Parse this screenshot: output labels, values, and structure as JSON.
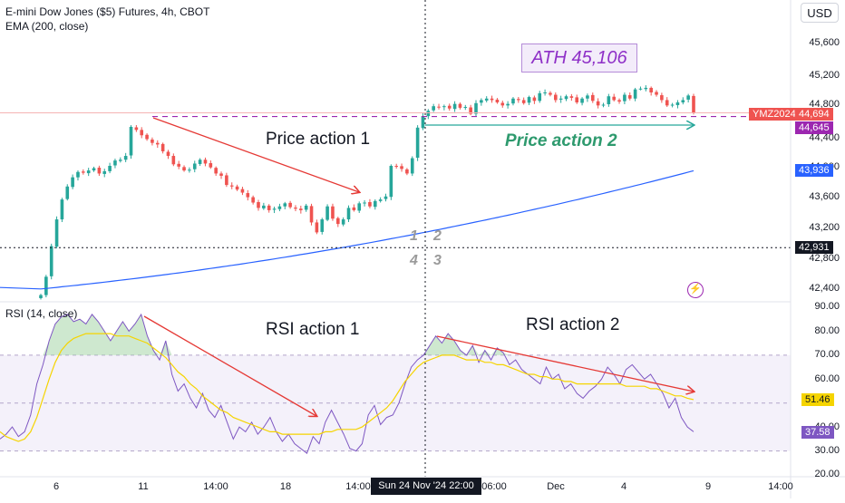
{
  "header": {
    "symbol": "E-mini Dow Jones ($5) Futures, 4h, CBOT",
    "indicator": "EMA (200, close)"
  },
  "currency": "USD",
  "rsi_header": "RSI (14, close)",
  "annotations": {
    "ath": "ATH 45,106",
    "price_action_1": "Price action 1",
    "price_action_2": "Price action 2",
    "rsi_action_1": "RSI action 1",
    "rsi_action_2": "RSI action 2",
    "n1": "1",
    "n2": "2",
    "n3": "3",
    "n4": "4"
  },
  "price_axis": [
    "45,600",
    "45,200",
    "44,800",
    "44,400",
    "44,000",
    "43,600",
    "43,200",
    "42,800",
    "42,400"
  ],
  "price_tags": {
    "symbol_tag": "YMZ2024",
    "last": "44,694",
    "level": "44,645",
    "ema": "43,936",
    "crosshair": "42,931"
  },
  "rsi_axis": [
    "90.00",
    "80.00",
    "70.00",
    "60.00",
    "40.00",
    "30.00",
    "20.00"
  ],
  "rsi_tags": {
    "ma": "51.46",
    "rsi": "37.58"
  },
  "x_axis": [
    "6",
    "11",
    "14:00",
    "18",
    "14:00",
    "06:00",
    "Dec",
    "4",
    "9",
    "14:00"
  ],
  "crosshair_date": "Sun 24 Nov '24   22:00",
  "colors": {
    "up": "#26a69a",
    "down": "#ef5350",
    "ema": "#2962ff",
    "rsi": "#7e57c2",
    "rsi_ma": "#f5d400",
    "arrow_red": "#e53935",
    "arrow_green": "#26a69a",
    "level": "#9c27b0"
  },
  "chart_data": [
    {
      "type": "candlestick",
      "title": "E-mini Dow Jones ($5) Futures, 4h, CBOT",
      "ylim": [
        42200,
        45800
      ],
      "y_ticks": [
        42400,
        42800,
        43200,
        43600,
        44000,
        44400,
        44800,
        45200,
        45600
      ],
      "close": [
        42310,
        42550,
        42950,
        43300,
        43560,
        43730,
        43850,
        43920,
        43910,
        43940,
        43970,
        43900,
        43930,
        44000,
        44070,
        44080,
        44130,
        44510,
        44470,
        44400,
        44350,
        44300,
        44280,
        44190,
        44130,
        44020,
        43990,
        43940,
        43950,
        44030,
        44080,
        44030,
        43980,
        43900,
        43870,
        43750,
        43730,
        43690,
        43650,
        43590,
        43520,
        43450,
        43480,
        43420,
        43440,
        43470,
        43510,
        43460,
        43440,
        43420,
        43480,
        43260,
        43130,
        43300,
        43470,
        43310,
        43240,
        43300,
        43450,
        43420,
        43510,
        43520,
        43470,
        43540,
        43560,
        43600,
        44000,
        43990,
        43960,
        43900,
        44100,
        44500,
        44650,
        44720,
        44780,
        44770,
        44780,
        44750,
        44810,
        44760,
        44770,
        44680,
        44820,
        44860,
        44880,
        44860,
        44830,
        44790,
        44810,
        44880,
        44860,
        44820,
        44900,
        44850,
        44950,
        44960,
        44930,
        44860,
        44880,
        44910,
        44890,
        44830,
        44880,
        44920,
        44850,
        44790,
        44800,
        44910,
        44860,
        44840,
        44930,
        44880,
        45000,
        45010,
        45020,
        44960,
        44930,
        44860,
        44790,
        44800,
        44830,
        44860,
        44920,
        44694
      ],
      "ema200": {
        "start": 42390,
        "end": 43936
      },
      "levels": {
        "last": 44694,
        "ath": 45106,
        "support": 44645,
        "crosshair": 42931
      }
    },
    {
      "type": "line",
      "title": "RSI (14, close)",
      "ylim": [
        20,
        90
      ],
      "y_ticks": [
        20,
        30,
        40,
        50,
        60,
        70,
        80,
        90
      ],
      "bands": [
        30,
        70
      ],
      "rsi_ma_last": 51.46,
      "rsi_last": 37.58,
      "series": [
        {
          "name": "RSI",
          "values": [
            35,
            37,
            40,
            36,
            38,
            45,
            58,
            66,
            76,
            83,
            86,
            87,
            84,
            85,
            83,
            87,
            84,
            80,
            76,
            80,
            84,
            80,
            83,
            87,
            78,
            72,
            68,
            76,
            62,
            55,
            58,
            52,
            48,
            54,
            47,
            44,
            49,
            42,
            35,
            40,
            38,
            42,
            37,
            40,
            44,
            38,
            34,
            37,
            33,
            31,
            29,
            36,
            33,
            42,
            47,
            42,
            37,
            31,
            30,
            33,
            45,
            49,
            41,
            44,
            45,
            50,
            58,
            65,
            68,
            70,
            74,
            78,
            75,
            79,
            76,
            72,
            70,
            74,
            67,
            72,
            68,
            73,
            71,
            66,
            68,
            64,
            62,
            60,
            58,
            65,
            60,
            62,
            56,
            58,
            54,
            52,
            55,
            57,
            60,
            65,
            62,
            58,
            64,
            66,
            63,
            60,
            62,
            58,
            54,
            48,
            52,
            44,
            40,
            38
          ]
        },
        {
          "name": "RSI MA",
          "values": [
            38,
            36,
            35,
            34,
            35,
            38,
            44,
            52,
            60,
            67,
            72,
            75,
            77,
            78,
            79,
            79,
            79,
            79,
            79,
            78,
            78,
            78,
            77,
            76,
            75,
            73,
            71,
            69,
            66,
            63,
            61,
            58,
            56,
            53,
            51,
            49,
            47,
            46,
            44,
            43,
            42,
            41,
            40,
            39,
            38,
            38,
            37,
            37,
            37,
            37,
            37,
            37,
            37,
            38,
            38,
            39,
            39,
            39,
            39,
            40,
            42,
            44,
            46,
            48,
            51,
            55,
            59,
            62,
            65,
            67,
            68,
            69,
            70,
            70,
            70,
            69,
            68,
            68,
            68,
            67,
            67,
            66,
            66,
            65,
            64,
            63,
            62,
            62,
            61,
            61,
            60,
            60,
            59,
            59,
            58,
            58,
            58,
            58,
            58,
            58,
            58,
            58,
            57,
            57,
            57,
            57,
            56,
            56,
            55,
            54,
            53,
            53,
            52,
            51.46
          ]
        }
      ]
    }
  ]
}
